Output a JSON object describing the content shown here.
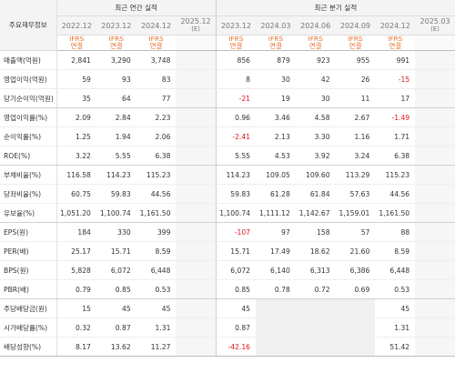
{
  "header": {
    "label_title": "주요재무정보",
    "annual_title": "최근 연간 실적",
    "quarterly_title": "최근 분기 실적",
    "annual_periods": [
      "2022.12",
      "2023.12",
      "2024.12",
      "2025.12"
    ],
    "annual_estimate_marks": [
      "",
      "",
      "",
      "(E)"
    ],
    "quarterly_periods": [
      "2023.12",
      "2024.03",
      "2024.06",
      "2024.09",
      "2024.12",
      "2025.03"
    ],
    "quarterly_estimate_marks": [
      "",
      "",
      "",
      "",
      "",
      "(E)"
    ],
    "ifrs": "IFRS",
    "consolidated": "연결"
  },
  "rows": [
    {
      "label": "매출액(억원)",
      "annual": [
        "2,841",
        "3,290",
        "3,748",
        ""
      ],
      "quarterly": [
        "856",
        "879",
        "923",
        "955",
        "991",
        ""
      ]
    },
    {
      "label": "영업이익(억원)",
      "annual": [
        "59",
        "93",
        "83",
        ""
      ],
      "quarterly": [
        "8",
        "30",
        "42",
        "26",
        "-15",
        ""
      ]
    },
    {
      "label": "당기순이익(억원)",
      "annual": [
        "35",
        "64",
        "77",
        ""
      ],
      "quarterly": [
        "-21",
        "19",
        "30",
        "11",
        "17",
        ""
      ]
    },
    {
      "label": "영업이익률(%)",
      "annual": [
        "2.09",
        "2.84",
        "2.23",
        ""
      ],
      "quarterly": [
        "0.96",
        "3.46",
        "4.58",
        "2.67",
        "-1.49",
        ""
      ]
    },
    {
      "label": "순이익률(%)",
      "annual": [
        "1.25",
        "1.94",
        "2.06",
        ""
      ],
      "quarterly": [
        "-2.41",
        "2.13",
        "3.30",
        "1.16",
        "1.71",
        ""
      ]
    },
    {
      "label": "ROE(%)",
      "annual": [
        "3.22",
        "5.55",
        "6.38",
        ""
      ],
      "quarterly": [
        "5.55",
        "4.53",
        "3.92",
        "3.24",
        "6.38",
        ""
      ]
    },
    {
      "label": "부채비율(%)",
      "annual": [
        "116.58",
        "114.23",
        "115.23",
        ""
      ],
      "quarterly": [
        "114.23",
        "109.05",
        "109.60",
        "113.29",
        "115.23",
        ""
      ]
    },
    {
      "label": "당좌비율(%)",
      "annual": [
        "60.75",
        "59.83",
        "44.56",
        ""
      ],
      "quarterly": [
        "59.83",
        "61.28",
        "61.84",
        "57.63",
        "44.56",
        ""
      ]
    },
    {
      "label": "유보율(%)",
      "annual": [
        "1,051.20",
        "1,100.74",
        "1,161.50",
        ""
      ],
      "quarterly": [
        "1,100.74",
        "1,111.12",
        "1,142.67",
        "1,159.01",
        "1,161.50",
        ""
      ]
    },
    {
      "label": "EPS(원)",
      "annual": [
        "184",
        "330",
        "399",
        ""
      ],
      "quarterly": [
        "-107",
        "97",
        "158",
        "57",
        "88",
        ""
      ]
    },
    {
      "label": "PER(배)",
      "annual": [
        "25.17",
        "15.71",
        "8.59",
        ""
      ],
      "quarterly": [
        "15.71",
        "17.49",
        "18.62",
        "21.60",
        "8.59",
        ""
      ]
    },
    {
      "label": "BPS(원)",
      "annual": [
        "5,828",
        "6,072",
        "6,448",
        ""
      ],
      "quarterly": [
        "6,072",
        "6,140",
        "6,313",
        "6,386",
        "6,448",
        ""
      ]
    },
    {
      "label": "PBR(배)",
      "annual": [
        "0.79",
        "0.85",
        "0.53",
        ""
      ],
      "quarterly": [
        "0.85",
        "0.78",
        "0.72",
        "0.69",
        "0.53",
        ""
      ]
    },
    {
      "label": "주당배당금(원)",
      "annual": [
        "15",
        "45",
        "45",
        ""
      ],
      "quarterly": [
        "45",
        "",
        "",
        "",
        "45",
        ""
      ]
    },
    {
      "label": "시가배당률(%)",
      "annual": [
        "0.32",
        "0.87",
        "1.31",
        ""
      ],
      "quarterly": [
        "0.87",
        "",
        "",
        "",
        "1.31",
        ""
      ]
    },
    {
      "label": "배당성향(%)",
      "annual": [
        "8.17",
        "13.62",
        "11.27",
        ""
      ],
      "quarterly": [
        "-42.16",
        "",
        "",
        "",
        "51.42",
        ""
      ]
    }
  ],
  "colors": {
    "negative": "#e0141e",
    "ifrs_label": "#e8712c",
    "header_bg": "#f4f4f4"
  }
}
